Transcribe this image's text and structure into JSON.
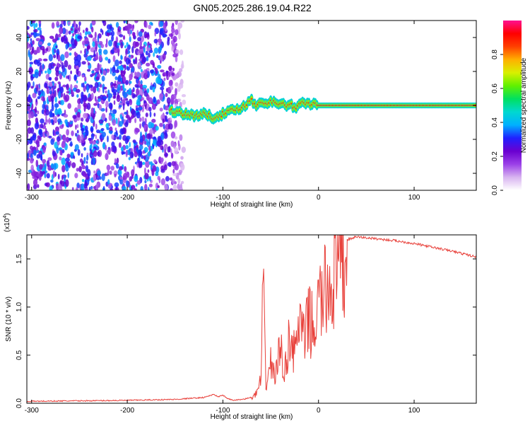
{
  "chart_data": {
    "title": "GN05.2025.286.19.04.R22",
    "panels": [
      {
        "type": "heatmap",
        "xlabel": "Height of straight line (km)",
        "ylabel": "Frequency (Hz)",
        "xlim": [
          -305,
          165
        ],
        "ylim": [
          -50,
          50
        ],
        "xticks": [
          -300,
          -200,
          -100,
          0,
          100
        ],
        "yticks": [
          -40,
          -20,
          0,
          20,
          40
        ],
        "colorbar": {
          "label": "Normalized spectral amplitude",
          "range": [
            0.0,
            1.0
          ],
          "ticks": [
            "0.0",
            "0.2",
            "0.4",
            "0.6",
            "0.8"
          ],
          "tick_values": [
            0.0,
            0.2,
            0.4,
            0.6,
            0.8
          ],
          "colormap": [
            "#ffffff",
            "#d8b4f0",
            "#9b40e8",
            "#6a00d0",
            "#2020ff",
            "#00b0ff",
            "#00d8d0",
            "#00e060",
            "#60f000",
            "#d8f000",
            "#ffb000",
            "#ff4000",
            "#ff0000",
            "#ff1090"
          ]
        },
        "signal_ridge": {
          "x": [
            -155,
            -145,
            -140,
            -130,
            -120,
            -110,
            -100,
            -95,
            -90,
            -85,
            -80,
            -75,
            -70,
            -65,
            -60,
            -55,
            -50,
            -45,
            -40,
            -35,
            -30,
            -25,
            -20,
            -15,
            -10,
            -5,
            0,
            50,
            100,
            165
          ],
          "y": [
            -3,
            -4,
            -5,
            -6,
            -5,
            -7,
            -5,
            -4,
            -3,
            -2,
            -1,
            1,
            3,
            0,
            2,
            1,
            3,
            2,
            1,
            0,
            1,
            -2,
            0,
            2,
            1,
            1,
            0,
            0,
            0,
            0
          ],
          "peak_amplitude": 1.0
        },
        "noise_region": {
          "x_range": [
            -305,
            -140
          ],
          "note_level": 0.15
        }
      },
      {
        "type": "line",
        "xlabel": "Height of straight line (km)",
        "ylabel": "SNR (10 * v/v)",
        "y_multiplier_label": "(x10",
        "y_multiplier_exp": "4",
        "y_multiplier_close": ")",
        "xlim": [
          -305,
          165
        ],
        "ylim": [
          0,
          17500
        ],
        "xticks": [
          -300,
          -200,
          -100,
          0,
          100
        ],
        "yticks": [
          "0.0",
          "0.5",
          "1.0",
          "1.5"
        ],
        "ytick_values": [
          0,
          5000,
          10000,
          15000
        ],
        "series": [
          {
            "color": "#e8403a",
            "x": [
              -305,
              -250,
              -200,
              -150,
              -120,
              -110,
              -105,
              -100,
              -95,
              -90,
              -80,
              -70,
              -65,
              -60,
              -58,
              -55,
              -50,
              -45,
              -40,
              -35,
              -30,
              -25,
              -20,
              -15,
              -10,
              -5,
              0,
              10,
              20,
              30,
              40,
              50,
              60,
              80,
              100,
              120,
              140,
              165
            ],
            "y": [
              200,
              250,
              300,
              400,
              600,
              900,
              700,
              800,
              500,
              300,
              400,
              600,
              1200,
              3000,
              14000,
              2500,
              5000,
              3500,
              7000,
              4000,
              9000,
              6000,
              10500,
              7500,
              11000,
              9000,
              12500,
              14500,
              16500,
              17000,
              17300,
              17200,
              17100,
              16900,
              16600,
              16200,
              15800,
              15200
            ]
          }
        ]
      }
    ]
  }
}
